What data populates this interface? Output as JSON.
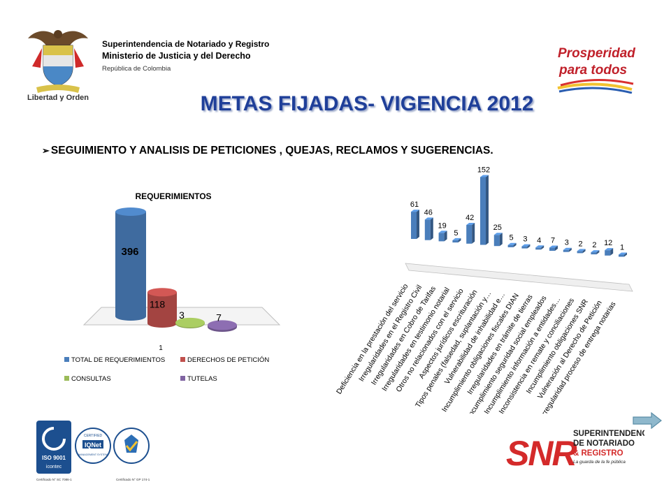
{
  "header": {
    "org_line1": "Superintendencia de Notariado y Registro",
    "org_line2": "Ministerio de  Justicia  y del Derecho",
    "org_line3": "República de Colombia",
    "coat_motto": "Libertad y Orden",
    "prosperity_logo": [
      "Prosperidad",
      "para todos"
    ]
  },
  "title": "METAS FIJADAS- VIGENCIA 2012",
  "subtitle": "SEGUIMIENTO Y ANALISIS DE PETICIONES , QUEJAS, RECLAMOS Y SUGERENCIAS.",
  "colors": {
    "title": "#1f3f99",
    "bar_blue": "#4a7ebb",
    "bar_red": "#c0504d",
    "bar_green": "#9bbb59",
    "bar_purple": "#8064a2"
  },
  "chart_data": [
    {
      "type": "bar",
      "title": "REQUERIMIENTOS",
      "categories": [
        "1"
      ],
      "series": [
        {
          "name": "TOTAL DE REQUERIMIENTOS",
          "values": [
            396
          ]
        },
        {
          "name": "DERECHOS DE PETICIÓN",
          "values": [
            118
          ]
        },
        {
          "name": "CONSULTAS",
          "values": [
            3
          ]
        },
        {
          "name": "TUTELAS",
          "values": [
            7
          ]
        }
      ],
      "legend_position": "bottom",
      "grid": false
    },
    {
      "type": "bar",
      "title": "",
      "categories": [
        "Deficiencia en la prestación del servicio",
        "Irregularidades en el Registro Civil",
        "Irregularidades en Cobro de Tarifas",
        "Irregularidades en testimonio notarial",
        "Otros no relacionados con el servicio",
        "Aspectos jurídicos escrituración",
        "Tipos penales (falsedad, suplantación y…",
        "Vulnerabilidad de inhabilidad e…",
        "Incumplimiento obligaciones fiscales DIAN",
        "Irregularidades en trámite de tierras",
        "Incumplimiento seguridad social empleados",
        "Incumplimiento información a entidades…",
        "Inconsistencia en remate y conciliaciones",
        "Incumplimiento obligaciones SNR",
        "Vulneración al Derecho de Petición",
        "Irregularidad proceso de entrega notarias"
      ],
      "values": [
        61,
        46,
        19,
        5,
        42,
        152,
        25,
        5,
        3,
        4,
        7,
        3,
        2,
        2,
        12,
        1
      ],
      "grid": false
    }
  ],
  "footer": {
    "cert_left": [
      "ISO 9001",
      "icontec",
      "Certificado N° SC 7086-1"
    ],
    "cert_mid": [
      "CERTIFIED",
      "IQNet",
      "MANAGEMENT SYSTEM"
    ],
    "cert_right": [
      "Certificado N° GP 174-1"
    ],
    "snr_logo": {
      "mark": "SNR",
      "line1": "SUPERINTENDENCIA",
      "line2": "DE NOTARIADO",
      "line3": "& REGISTRO",
      "tagline": "La guarda de la fe pública"
    }
  }
}
